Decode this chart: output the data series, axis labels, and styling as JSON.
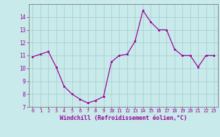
{
  "x": [
    0,
    1,
    2,
    3,
    4,
    5,
    6,
    7,
    8,
    9,
    10,
    11,
    12,
    13,
    14,
    15,
    16,
    17,
    18,
    19,
    20,
    21,
    22,
    23
  ],
  "y": [
    10.9,
    11.1,
    11.3,
    10.1,
    8.6,
    8.0,
    7.6,
    7.3,
    7.5,
    7.8,
    10.5,
    11.0,
    11.1,
    12.1,
    14.5,
    13.6,
    13.0,
    13.0,
    11.5,
    11.0,
    11.0,
    10.1,
    11.0,
    11.0
  ],
  "line_color": "#990099",
  "marker_color": "#990099",
  "bg_color": "#c8eaea",
  "grid_color": "#aacece",
  "xlabel": "Windchill (Refroidissement éolien,°C)",
  "ylim": [
    7,
    15
  ],
  "yticks": [
    7,
    8,
    9,
    10,
    11,
    12,
    13,
    14
  ],
  "xticks": [
    0,
    1,
    2,
    3,
    4,
    5,
    6,
    7,
    8,
    9,
    10,
    11,
    12,
    13,
    14,
    15,
    16,
    17,
    18,
    19,
    20,
    21,
    22,
    23
  ],
  "tick_color": "#990099",
  "label_color": "#990099",
  "axis_color": "#777777",
  "tick_fontsize": 5,
  "xlabel_fontsize": 6
}
